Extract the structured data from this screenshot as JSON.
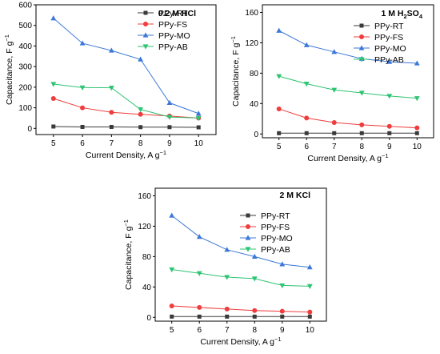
{
  "chart_data": [
    {
      "type": "line",
      "title": "0.2 M HCl",
      "xlabel": "Current Density, A g−1",
      "ylabel": "Capacitance, F g−1",
      "x_prefix": "Current Density, A g",
      "x_sup": "−1",
      "y_prefix": "Capacitance, F g",
      "y_sup": "−1",
      "title_main": "0.2 M HCl",
      "title_sub": "",
      "title_tail": "",
      "x": [
        5,
        6,
        7,
        8,
        9,
        10
      ],
      "xlim": [
        4.4,
        10.6
      ],
      "ylim": [
        -30,
        600
      ],
      "xticks": [
        "5",
        "6",
        "7",
        "8",
        "9",
        "10"
      ],
      "yticks": [
        0,
        100,
        200,
        300,
        400,
        500,
        600
      ],
      "legend": "top-right",
      "series": [
        {
          "name": "PPy-RT",
          "color": "#3a3a3a",
          "marker": "square",
          "values": [
            9,
            7,
            7,
            6,
            6,
            5
          ]
        },
        {
          "name": "PPy-FS",
          "color": "#f03c3c",
          "marker": "circle",
          "values": [
            145,
            100,
            78,
            68,
            60,
            50
          ]
        },
        {
          "name": "PPy-MO",
          "color": "#3c78d8",
          "marker": "triangle-up",
          "values": [
            535,
            413,
            378,
            335,
            124,
            72
          ]
        },
        {
          "name": "PPy-AB",
          "color": "#2ec472",
          "marker": "triangle-down",
          "values": [
            215,
            198,
            197,
            92,
            55,
            50
          ]
        }
      ]
    },
    {
      "type": "line",
      "title": "1 M H2SO4",
      "xlabel": "Current Density, A g−1",
      "ylabel": "Capacitance, F g−1",
      "x_prefix": "Current Density, A g",
      "x_sup": "−1",
      "y_prefix": "Capacitance, F g",
      "y_sup": "−1",
      "title_main": "1 M H",
      "title_sub": "2",
      "title_tail": "SO",
      "title_sub2": "4",
      "x": [
        5,
        6,
        7,
        8,
        9,
        10
      ],
      "xlim": [
        4.4,
        10.6
      ],
      "ylim": [
        -5,
        170
      ],
      "xticks": [
        "5",
        "6",
        "7",
        "8",
        "9",
        "10"
      ],
      "yticks": [
        0,
        40,
        80,
        120,
        160
      ],
      "legend": "top-right",
      "series": [
        {
          "name": "PPy-RT",
          "color": "#3a3a3a",
          "marker": "square",
          "values": [
            1,
            1,
            1,
            1,
            1,
            1
          ]
        },
        {
          "name": "PPy-FS",
          "color": "#f03c3c",
          "marker": "circle",
          "values": [
            33,
            21,
            15,
            12,
            10,
            8
          ]
        },
        {
          "name": "PPy-MO",
          "color": "#3c78d8",
          "marker": "triangle-up",
          "values": [
            136,
            117,
            108,
            99,
            95,
            93
          ]
        },
        {
          "name": "PPy-AB",
          "color": "#2ec472",
          "marker": "triangle-down",
          "values": [
            76,
            66,
            58,
            54,
            50,
            47
          ]
        }
      ]
    },
    {
      "type": "line",
      "title": "2 M KCl",
      "xlabel": "Current Density, A g−1",
      "ylabel": "Capacitance, F g−1",
      "x_prefix": "Current Density, A g",
      "x_sup": "−1",
      "y_prefix": "Capacitance, F g",
      "y_sup": "−1",
      "title_main": "2 M KCl",
      "title_sub": "",
      "title_tail": "",
      "x": [
        5,
        6,
        7,
        8,
        9,
        10
      ],
      "xlim": [
        4.4,
        10.6
      ],
      "ylim": [
        -5,
        170
      ],
      "xticks": [
        "5",
        "6",
        "7",
        "8",
        "9",
        "10"
      ],
      "yticks": [
        0,
        40,
        80,
        120,
        160
      ],
      "legend": "top-right",
      "series": [
        {
          "name": "PPy-RT",
          "color": "#3a3a3a",
          "marker": "square",
          "values": [
            1,
            1,
            1,
            1,
            1,
            1
          ]
        },
        {
          "name": "PPy-FS",
          "color": "#f03c3c",
          "marker": "circle",
          "values": [
            15,
            13,
            11,
            9,
            8,
            7
          ]
        },
        {
          "name": "PPy-MO",
          "color": "#3c78d8",
          "marker": "triangle-up",
          "values": [
            134,
            106,
            89,
            80,
            70,
            66
          ]
        },
        {
          "name": "PPy-AB",
          "color": "#2ec472",
          "marker": "triangle-down",
          "values": [
            63,
            58,
            53,
            51,
            42,
            41
          ]
        }
      ]
    }
  ]
}
